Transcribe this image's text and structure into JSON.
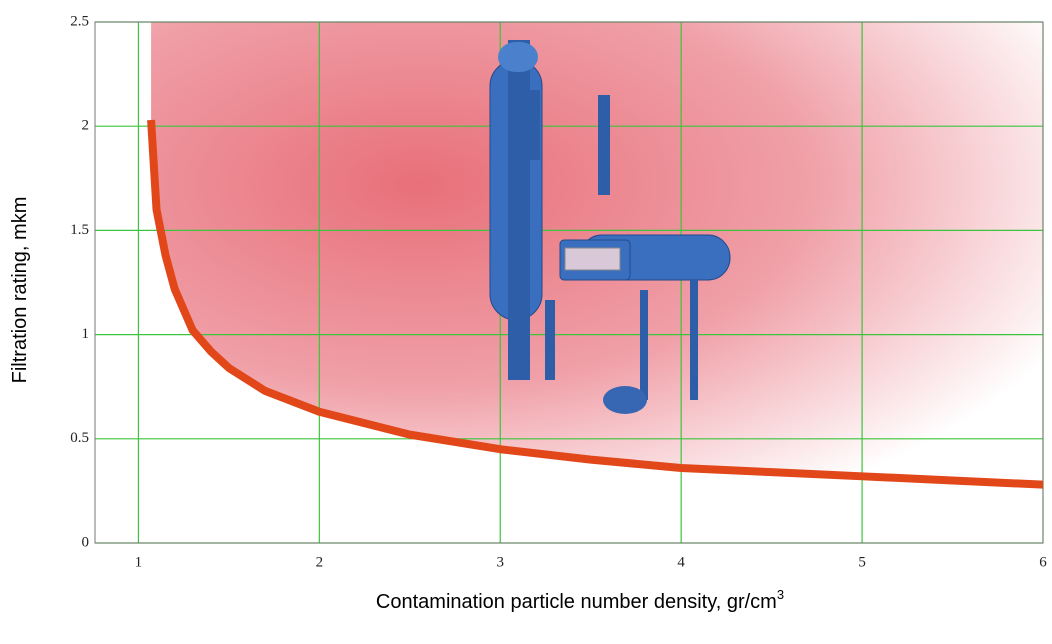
{
  "chart_data": {
    "type": "line",
    "x_label": "Contamination particle number density, gr/cm",
    "x_label_superscript": "3",
    "y_label": "Filtration rating, mkm",
    "x": [
      1.07,
      1.1,
      1.15,
      1.2,
      1.3,
      1.4,
      1.5,
      1.7,
      2,
      2.5,
      3,
      3.5,
      4,
      4.5,
      5,
      5.5,
      6
    ],
    "series": [
      {
        "color": "#e2471a",
        "values": [
          2.03,
          1.6,
          1.38,
          1.22,
          1.02,
          0.92,
          0.84,
          0.73,
          0.63,
          0.52,
          0.45,
          0.4,
          0.36,
          0.34,
          0.32,
          0.3,
          0.28
        ]
      }
    ],
    "xlim": [
      0.76,
      6
    ],
    "ylim": [
      0,
      2.5
    ],
    "xticks": [
      1,
      2,
      3,
      4,
      5,
      6
    ],
    "yticks": [
      0,
      0.5,
      1,
      1.5,
      2,
      2.5
    ],
    "grid": true,
    "grid_color": "#3cc43c"
  }
}
